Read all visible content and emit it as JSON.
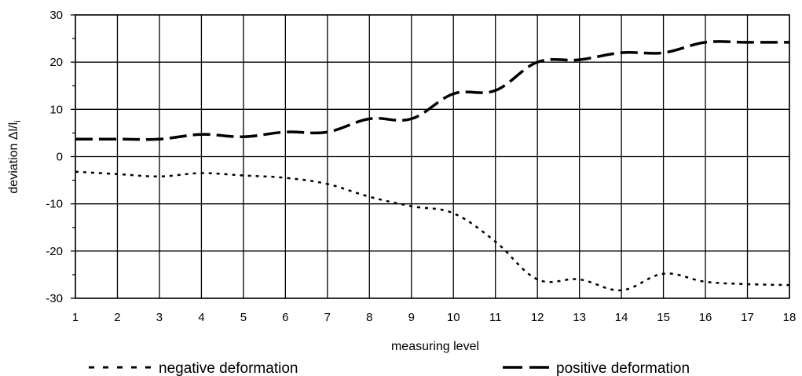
{
  "chart_data": {
    "type": "line",
    "xlabel": "measuring level",
    "ylabel": "deviation Δl/l",
    "ylabel_sub": "i",
    "xlim": [
      1,
      18
    ],
    "ylim": [
      -30,
      30
    ],
    "x_ticks": [
      "1",
      "2",
      "3",
      "4",
      "5",
      "6",
      "7",
      "8",
      "9",
      "10",
      "11",
      "12",
      "13",
      "14",
      "15",
      "16",
      "17",
      "18"
    ],
    "y_ticks": [
      "30",
      "20",
      "10",
      "0",
      "-10",
      "-20",
      "-30"
    ],
    "grid": true,
    "legend": "bottom",
    "x": [
      1,
      2,
      3,
      4,
      5,
      6,
      7,
      8,
      9,
      10,
      11,
      12,
      13,
      14,
      15,
      16,
      17,
      18
    ],
    "series": [
      {
        "name": "negative deformation",
        "style": "dotted",
        "color": "#000000",
        "values": [
          -3.2,
          -3.7,
          -4.2,
          -3.5,
          -4.0,
          -4.5,
          -5.8,
          -8.5,
          -10.5,
          -12.0,
          -18.0,
          -26.0,
          -26.0,
          -28.3,
          -24.8,
          -26.5,
          -27.0,
          -27.2
        ]
      },
      {
        "name": "positive deformation",
        "style": "dashed",
        "color": "#000000",
        "values": [
          3.7,
          3.7,
          3.7,
          4.7,
          4.2,
          5.2,
          5.2,
          8.0,
          8.0,
          13.3,
          14.0,
          20.0,
          20.5,
          22.0,
          22.0,
          24.2,
          24.2,
          24.2
        ]
      }
    ]
  }
}
